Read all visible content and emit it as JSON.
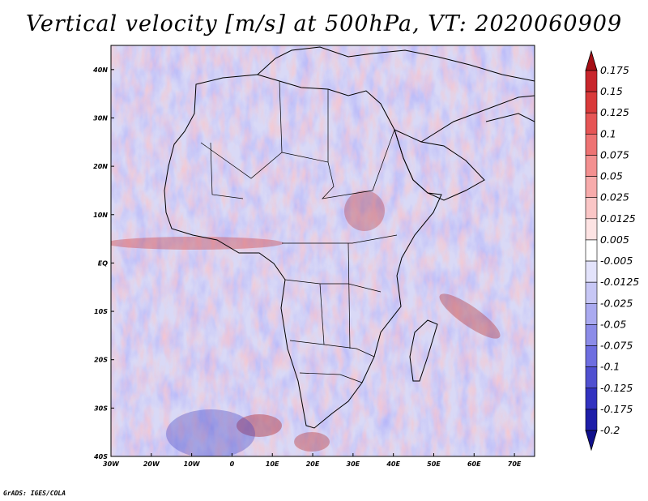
{
  "title": "Vertical velocity [m/s] at 500hPa, VT: 2020060909",
  "credit": "GrADS: IGES/COLA",
  "map": {
    "projection": "latlon",
    "lon_range": [
      -30,
      75
    ],
    "lat_range": [
      -40,
      45
    ],
    "x_tick_labels": [
      "30W",
      "20W",
      "10W",
      "0",
      "10E",
      "20E",
      "30E",
      "40E",
      "50E",
      "60E",
      "70E"
    ],
    "y_tick_labels": [
      "40N",
      "30N",
      "20N",
      "10N",
      "EQ",
      "10S",
      "20S",
      "30S",
      "40S"
    ]
  },
  "colorbar": {
    "variable": "vertical velocity",
    "units": "m/s",
    "levels": [
      "0.175",
      "0.15",
      "0.125",
      "0.1",
      "0.075",
      "0.05",
      "0.025",
      "0.0125",
      "0.005",
      "-0.005",
      "-0.0125",
      "-0.025",
      "-0.05",
      "-0.075",
      "-0.1",
      "-0.125",
      "-0.175",
      "-0.2"
    ],
    "colors": [
      "#a50f15",
      "#c8262c",
      "#d93a3a",
      "#e65555",
      "#ee7373",
      "#f39090",
      "#f7abab",
      "#fac6c6",
      "#fde3e3",
      "#ffffff",
      "#e3e3fb",
      "#c7c7f5",
      "#aaaaf0",
      "#8c8ce8",
      "#6e6ee0",
      "#5050d0",
      "#3232c0",
      "#1e1ea8",
      "#10108c"
    ]
  }
}
